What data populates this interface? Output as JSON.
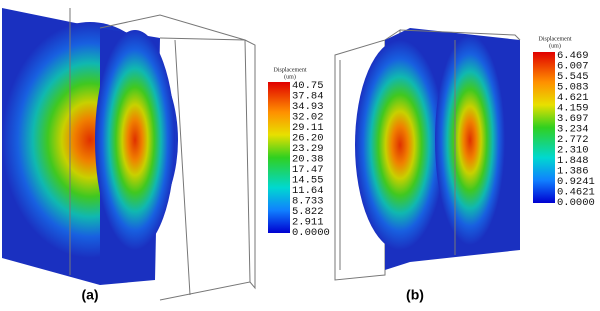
{
  "panels": [
    {
      "colorbar": {
        "title": "Displacement",
        "unit": "(um)",
        "labels": [
          "40.75",
          "37.84",
          "34.93",
          "32.02",
          "29.11",
          "26.20",
          "23.29",
          "20.38",
          "17.47",
          "14.55",
          "11.64",
          "8.733",
          "5.822",
          "2.911",
          "0.0000"
        ]
      },
      "caption": "(a)"
    },
    {
      "colorbar": {
        "title": "Displacement",
        "unit": "(um)",
        "labels": [
          "6.469",
          "6.007",
          "5.545",
          "5.083",
          "4.621",
          "4.159",
          "3.697",
          "3.234",
          "2.772",
          "2.310",
          "1.848",
          "1.386",
          "0.9241",
          "0.4621",
          "0.0000"
        ]
      },
      "caption": "(b)"
    }
  ]
}
